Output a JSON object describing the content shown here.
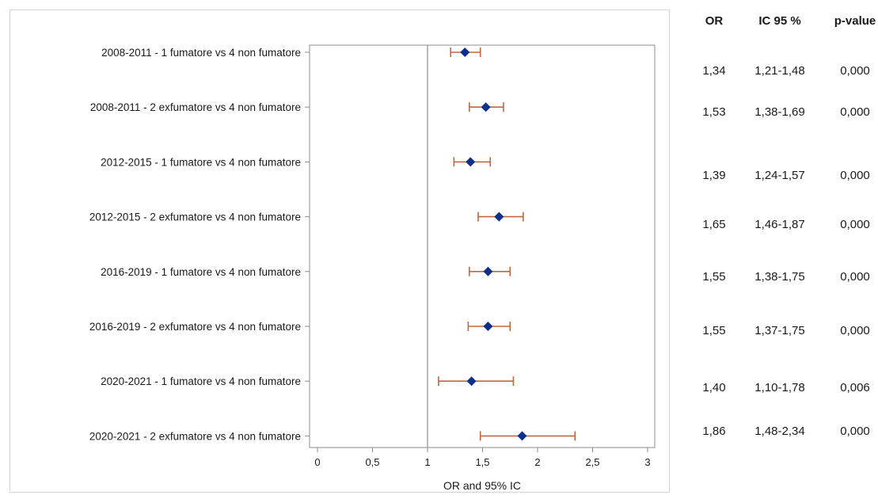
{
  "chart_data": {
    "type": "scatter",
    "subtype": "forest-plot",
    "xlabel": "OR and 95% IC",
    "xlim": [
      0,
      3
    ],
    "x_ticks": [
      0,
      0.5,
      1,
      1.5,
      2,
      2.5,
      3
    ],
    "x_tick_labels": [
      "0",
      "0,5",
      "1",
      "1,5",
      "2",
      "2,5",
      "3"
    ],
    "reference_line": 1,
    "grid": false,
    "marker_color": "#0e2f8c",
    "ci_color": "#c0683d",
    "rows": [
      {
        "label": "2008-2011 - 1 fumatore vs 4 non fumatore",
        "or": 1.34,
        "lo": 1.21,
        "hi": 1.48
      },
      {
        "label": "2008-2011 - 2 exfumatore vs 4 non fumatore",
        "or": 1.53,
        "lo": 1.38,
        "hi": 1.69
      },
      {
        "label": "2012-2015 - 1 fumatore vs 4 non fumatore",
        "or": 1.39,
        "lo": 1.24,
        "hi": 1.57
      },
      {
        "label": "2012-2015 - 2 exfumatore vs 4 non fumatore",
        "or": 1.65,
        "lo": 1.46,
        "hi": 1.87
      },
      {
        "label": "2016-2019 - 1 fumatore vs 4 non fumatore",
        "or": 1.55,
        "lo": 1.38,
        "hi": 1.75
      },
      {
        "label": "2016-2019 - 2 exfumatore vs 4 non fumatore",
        "or": 1.55,
        "lo": 1.37,
        "hi": 1.75
      },
      {
        "label": "2020-2021 - 1 fumatore vs 4 non fumatore",
        "or": 1.4,
        "lo": 1.1,
        "hi": 1.78
      },
      {
        "label": "2020-2021 - 2 exfumatore vs 4 non fumatore",
        "or": 1.86,
        "lo": 1.48,
        "hi": 2.34
      }
    ]
  },
  "table": {
    "headers": [
      "OR",
      "IC 95 %",
      "p-value"
    ],
    "rows": [
      [
        "1,34",
        "1,21-1,48",
        "0,000"
      ],
      [
        "1,53",
        "1,38-1,69",
        "0,000"
      ],
      [
        "1,39",
        "1,24-1,57",
        "0,000"
      ],
      [
        "1,65",
        "1,46-1,87",
        "0,000"
      ],
      [
        "1,55",
        "1,38-1,75",
        "0,000"
      ],
      [
        "1,55",
        "1,37-1,75",
        "0,000"
      ],
      [
        "1,40",
        "1,10-1,78",
        "0,006"
      ],
      [
        "1,86",
        "1,48-2,34",
        "0,000"
      ]
    ]
  }
}
